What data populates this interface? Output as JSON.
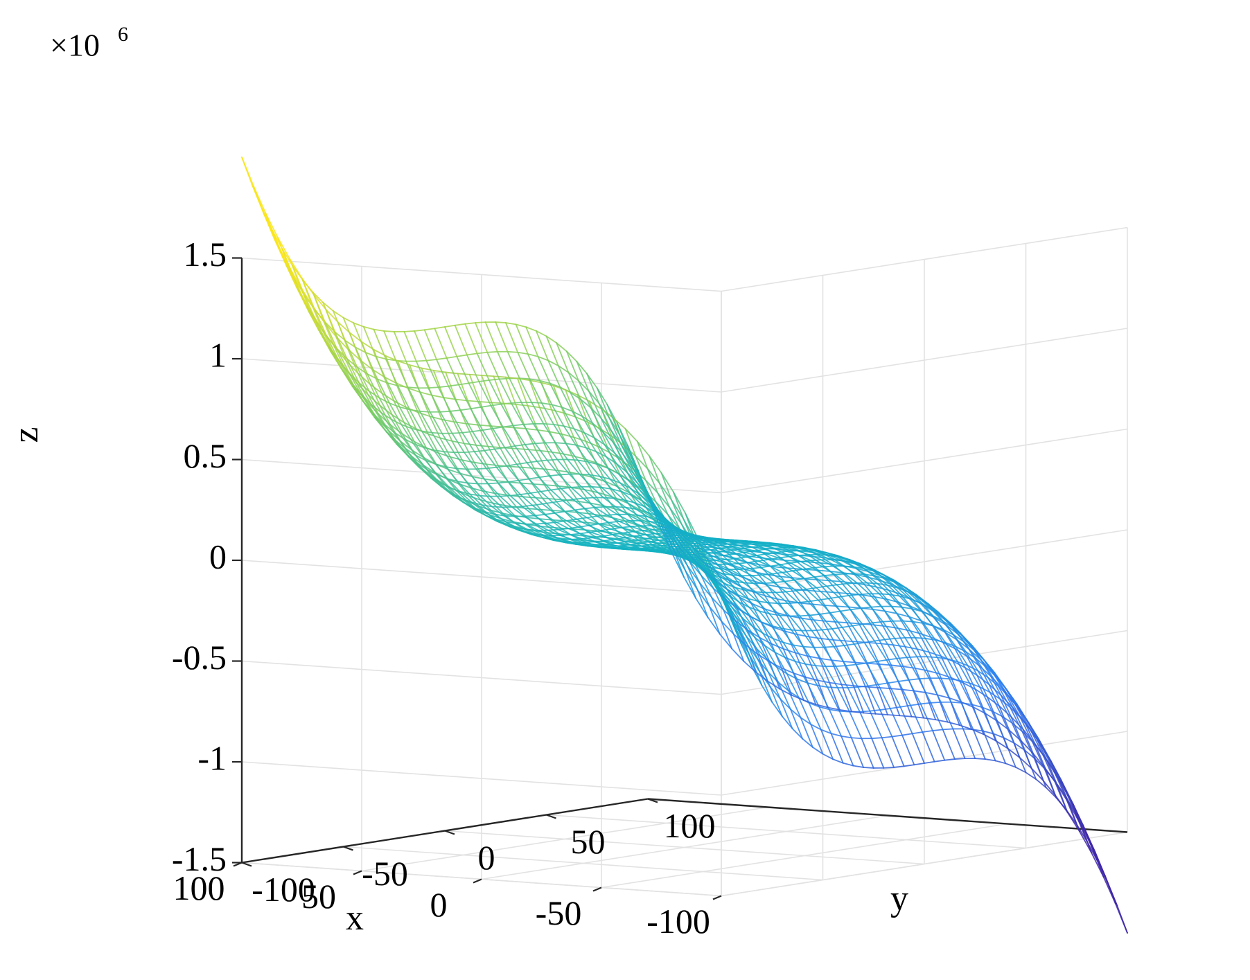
{
  "chart_data": {
    "type": "surface",
    "title": "",
    "xlabel": "x",
    "ylabel": "y",
    "zlabel": "z",
    "z_exponent_label": "×10",
    "z_exponent_power": "6",
    "z_multiplier": 1000000,
    "xlim": [
      -100,
      100
    ],
    "ylim": [
      -100,
      100
    ],
    "zlim": [
      -1.5,
      1.5
    ],
    "x_ticks": [
      100,
      50,
      0,
      -50,
      -100
    ],
    "y_ticks": [
      100,
      50,
      0,
      -50,
      -100
    ],
    "z_ticks": [
      1.5,
      1,
      0.5,
      0,
      -0.5,
      -1,
      -1.5
    ],
    "x_tick_labels": [
      "100",
      "50",
      "0",
      "-50",
      "-100"
    ],
    "y_tick_labels": [
      "100",
      "50",
      "0",
      "-50",
      "-100"
    ],
    "z_tick_labels": [
      "1.5",
      "1",
      "0.5",
      "0",
      "-0.5",
      "-1",
      "-1.5"
    ],
    "function": "z = x^3 - y^3",
    "mesh_resolution": 41,
    "colormap": "parula",
    "colormap_stops": [
      "#3e26a8",
      "#2f7ff2",
      "#12b2c4",
      "#7ecd60",
      "#f9e51a"
    ],
    "grid": true,
    "surface_type": "mesh"
  }
}
